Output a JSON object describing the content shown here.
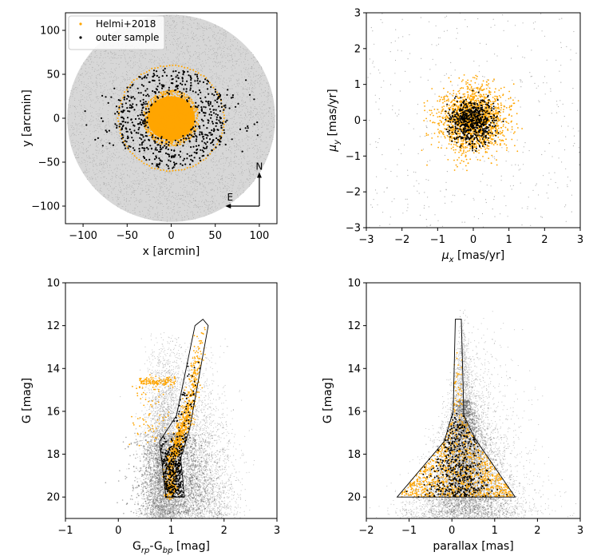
{
  "colors": {
    "helmi": "#ffa500",
    "outer": "#000000",
    "field": "#9a9a9a",
    "field_dense": "#6e6e6e"
  },
  "chart_data": [
    {
      "type": "scatter",
      "panel": "sky-position",
      "xlabel": "x [arcmin]",
      "ylabel": "y [arcmin]",
      "xlim": [
        -120,
        120
      ],
      "ylim": [
        -120,
        120
      ],
      "xticks": [
        -100,
        -50,
        0,
        50,
        100
      ],
      "yticks": [
        -100,
        -50,
        0,
        50,
        100
      ],
      "legend": {
        "placement": "top-left",
        "entries": [
          {
            "label": "Helmi+2018",
            "color": "#ffa500"
          },
          {
            "label": "outer sample",
            "color": "#000000"
          }
        ]
      },
      "field_radius": 118,
      "selection_ring_radius": 60,
      "helmi_core_radius": 32,
      "outer_inner_radius": 25,
      "outer_outer_radius": 62,
      "compass": {
        "north_label": "N",
        "east_label": "E",
        "origin": [
          100,
          -100
        ],
        "length": 35
      },
      "series": [
        {
          "name": "Helmi+2018",
          "count": 2600,
          "description": "dense core within ~32 arcmin plus dotted ring at ~60 arcmin"
        },
        {
          "name": "outer sample",
          "count": 650,
          "description": "annulus between ~25 and ~62 arcmin with scattered points out to ~100 arcmin"
        }
      ]
    },
    {
      "type": "scatter",
      "panel": "proper-motion",
      "xlabel": "μx [mas/yr]",
      "ylabel": "μy [mas/yr]",
      "xlim": [
        -3,
        3
      ],
      "ylim": [
        -3,
        3
      ],
      "xticks": [
        -3,
        -2,
        -1,
        0,
        1,
        2,
        3
      ],
      "yticks": [
        -3,
        -2,
        -1,
        0,
        1,
        2,
        3
      ],
      "series": [
        {
          "name": "Helmi+2018",
          "center": [
            0,
            0
          ],
          "sigma": 0.45,
          "count": 1800
        },
        {
          "name": "outer sample",
          "center": [
            0,
            0
          ],
          "sigma": 0.33,
          "count": 650,
          "max_radius": 0.9
        }
      ]
    },
    {
      "type": "scatter",
      "panel": "cmd",
      "xlabel": "G_rp-G_bp [mag]",
      "ylabel": "G [mag]",
      "xlim": [
        -1,
        3
      ],
      "ylim": [
        21,
        10
      ],
      "xticks": [
        -1,
        0,
        1,
        2,
        3
      ],
      "yticks": [
        10,
        12,
        14,
        16,
        18,
        20
      ],
      "selection_polygon": [
        [
          1.6,
          11.7
        ],
        [
          1.7,
          12.0
        ],
        [
          1.35,
          16.8
        ],
        [
          1.18,
          18.2
        ],
        [
          1.25,
          20.0
        ],
        [
          0.9,
          20.0
        ],
        [
          0.78,
          17.4
        ],
        [
          1.1,
          16.2
        ],
        [
          1.45,
          12.0
        ]
      ],
      "red_giant_branch": [
        [
          1.6,
          11.9
        ],
        [
          1.5,
          13.5
        ],
        [
          1.4,
          15.0
        ],
        [
          1.3,
          16.3
        ],
        [
          1.15,
          17.3
        ],
        [
          1.02,
          18.2
        ],
        [
          0.98,
          20.0
        ]
      ],
      "horizontal_branch": {
        "x_range": [
          0.4,
          1.1
        ],
        "g": 14.6
      },
      "blue_horizontal_branch": {
        "x_range": [
          0.3,
          0.9
        ],
        "g_range": [
          14.6,
          17.6
        ]
      }
    },
    {
      "type": "scatter",
      "panel": "parallax",
      "xlabel": "parallax [mas]",
      "ylabel": "G [mag]",
      "xlim": [
        -2,
        3
      ],
      "ylim": [
        21,
        10
      ],
      "xticks": [
        -2,
        -1,
        0,
        1,
        2,
        3
      ],
      "yticks": [
        10,
        12,
        14,
        16,
        18,
        20
      ],
      "selection_polygon": [
        [
          0.08,
          11.7
        ],
        [
          0.22,
          11.7
        ],
        [
          0.28,
          16.2
        ],
        [
          0.55,
          17.3
        ],
        [
          1.48,
          20.0
        ],
        [
          -1.28,
          20.0
        ],
        [
          -0.18,
          17.4
        ],
        [
          0.03,
          16.0
        ]
      ]
    }
  ]
}
